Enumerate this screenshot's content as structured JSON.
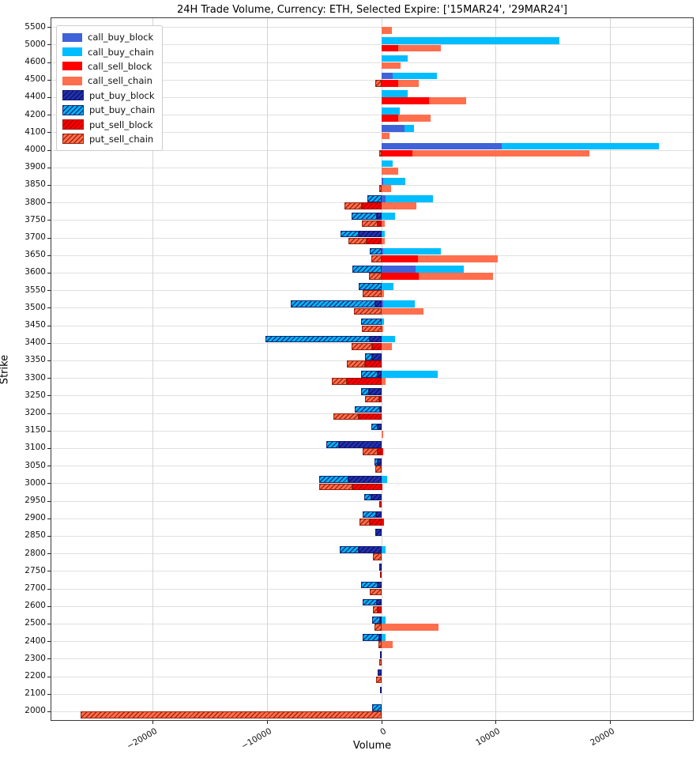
{
  "title": "24H Trade Volume, Currency: ETH, Selected Expire: ['15MAR24', '29MAR24']",
  "chart_data": {
    "type": "bar",
    "orientation": "horizontal",
    "title": "24H Trade Volume, Currency: ETH, Selected Expire: ['15MAR24', '29MAR24']",
    "xlabel": "Volume",
    "ylabel": "Strike",
    "xlim": [
      -28850,
      27250
    ],
    "xticks": [
      -20000,
      -10000,
      0,
      10000,
      20000
    ],
    "xtick_labels": [
      "−20000",
      "−10000",
      "0",
      "10000",
      "20000"
    ],
    "grid": true,
    "legend_position": "upper left",
    "series_names": [
      "call_buy_block",
      "call_buy_chain",
      "call_sell_block",
      "call_sell_chain",
      "put_buy_block",
      "put_buy_chain",
      "put_sell_block",
      "put_sell_chain"
    ],
    "colors": {
      "call_buy_block": "#4062d8",
      "call_buy_chain": "#00bdff",
      "call_sell_block": "#fe0000",
      "call_sell_chain": "#ff6f4e",
      "put_buy_block": "#2330b4",
      "put_buy_chain": "#00b4f8",
      "put_sell_block": "#fa0000",
      "put_sell_chain": "#ff6f4e"
    },
    "hatched_series": [
      "put_buy_block",
      "put_buy_chain",
      "put_sell_block",
      "put_sell_chain"
    ],
    "strikes": [
      5500,
      5000,
      4600,
      4500,
      4400,
      4200,
      4100,
      4000,
      3900,
      3850,
      3800,
      3750,
      3700,
      3650,
      3600,
      3550,
      3500,
      3450,
      3400,
      3350,
      3300,
      3250,
      3200,
      3150,
      3100,
      3050,
      3000,
      2950,
      2900,
      2850,
      2800,
      2750,
      2700,
      2600,
      2500,
      2400,
      2300,
      2200,
      2100,
      2000
    ],
    "rows": [
      {
        "strike": 5500,
        "call_buy_block": 0,
        "call_buy_chain": 0,
        "call_sell_block": 0,
        "call_sell_chain": 900,
        "put_buy_block": 0,
        "put_buy_chain": 0,
        "put_sell_block": 0,
        "put_sell_chain": 0
      },
      {
        "strike": 5000,
        "call_buy_block": 0,
        "call_buy_chain": 15600,
        "call_sell_block": 1500,
        "call_sell_chain": 3700,
        "put_buy_block": 0,
        "put_buy_chain": 0,
        "put_sell_block": 0,
        "put_sell_chain": 0
      },
      {
        "strike": 4600,
        "call_buy_block": 0,
        "call_buy_chain": 2300,
        "call_sell_block": 0,
        "call_sell_chain": 1700,
        "put_buy_block": 0,
        "put_buy_chain": 0,
        "put_sell_block": 0,
        "put_sell_chain": 0
      },
      {
        "strike": 4500,
        "call_buy_block": 1000,
        "call_buy_chain": 3900,
        "call_sell_block": 1500,
        "call_sell_chain": 1800,
        "put_buy_block": 0,
        "put_buy_chain": 0,
        "put_sell_block": 0,
        "put_sell_chain": -500
      },
      {
        "strike": 4400,
        "call_buy_block": 0,
        "call_buy_chain": 2300,
        "call_sell_block": 4200,
        "call_sell_chain": 3200,
        "put_buy_block": 0,
        "put_buy_chain": 0,
        "put_sell_block": 0,
        "put_sell_chain": 0
      },
      {
        "strike": 4200,
        "call_buy_block": 0,
        "call_buy_chain": 1600,
        "call_sell_block": 1500,
        "call_sell_chain": 2800,
        "put_buy_block": 0,
        "put_buy_chain": 0,
        "put_sell_block": 0,
        "put_sell_chain": 0
      },
      {
        "strike": 4100,
        "call_buy_block": 2000,
        "call_buy_chain": 850,
        "call_sell_block": 0,
        "call_sell_chain": 700,
        "put_buy_block": 0,
        "put_buy_chain": 0,
        "put_sell_block": 0,
        "put_sell_chain": 0
      },
      {
        "strike": 4000,
        "call_buy_block": 10500,
        "call_buy_chain": 13800,
        "call_sell_block": 2700,
        "call_sell_chain": 15500,
        "put_buy_block": 0,
        "put_buy_chain": 0,
        "put_sell_block": 0,
        "put_sell_chain": -200
      },
      {
        "strike": 3900,
        "call_buy_block": 0,
        "call_buy_chain": 1000,
        "call_sell_block": 0,
        "call_sell_chain": 1500,
        "put_buy_block": 0,
        "put_buy_chain": 0,
        "put_sell_block": 0,
        "put_sell_chain": 0
      },
      {
        "strike": 3850,
        "call_buy_block": 200,
        "call_buy_chain": 1900,
        "call_sell_block": 0,
        "call_sell_chain": 850,
        "put_buy_block": 0,
        "put_buy_chain": 0,
        "put_sell_block": 0,
        "put_sell_chain": -200
      },
      {
        "strike": 3800,
        "call_buy_block": 400,
        "call_buy_chain": 4100,
        "call_sell_block": 0,
        "call_sell_chain": 3100,
        "put_buy_block": 0,
        "put_buy_chain": -1200,
        "put_sell_block": -1700,
        "put_sell_chain": -1500
      },
      {
        "strike": 3750,
        "call_buy_block": 0,
        "call_buy_chain": 1200,
        "call_sell_block": 0,
        "call_sell_chain": 300,
        "put_buy_block": -400,
        "put_buy_chain": -2200,
        "put_sell_block": -300,
        "put_sell_chain": -1400
      },
      {
        "strike": 3700,
        "call_buy_block": 0,
        "call_buy_chain": 300,
        "call_sell_block": 0,
        "call_sell_chain": 300,
        "put_buy_block": -2000,
        "put_buy_chain": -1550,
        "put_sell_block": -1300,
        "put_sell_chain": -1600
      },
      {
        "strike": 3650,
        "call_buy_block": 200,
        "call_buy_chain": 5000,
        "call_sell_block": 3200,
        "call_sell_chain": 7000,
        "put_buy_block": 0,
        "put_buy_chain": -1000,
        "put_sell_block": 0,
        "put_sell_chain": -900
      },
      {
        "strike": 3600,
        "call_buy_block": 3000,
        "call_buy_chain": 4200,
        "call_sell_block": 3300,
        "call_sell_chain": 6500,
        "put_buy_block": 0,
        "put_buy_chain": -2500,
        "put_sell_block": 0,
        "put_sell_chain": -1100
      },
      {
        "strike": 3550,
        "call_buy_block": 0,
        "call_buy_chain": 1100,
        "call_sell_block": 0,
        "call_sell_chain": 250,
        "put_buy_block": 0,
        "put_buy_chain": -2000,
        "put_sell_block": 0,
        "put_sell_chain": -1600
      },
      {
        "strike": 3500,
        "call_buy_block": 200,
        "call_buy_chain": 2700,
        "call_sell_block": 0,
        "call_sell_chain": 3700,
        "put_buy_block": -500,
        "put_buy_chain": -7400,
        "put_sell_block": 0,
        "put_sell_chain": -2400
      },
      {
        "strike": 3450,
        "call_buy_block": 0,
        "call_buy_chain": 250,
        "call_sell_block": 0,
        "call_sell_chain": 150,
        "put_buy_block": 0,
        "put_buy_chain": -1800,
        "put_sell_block": 0,
        "put_sell_chain": -1700
      },
      {
        "strike": 3400,
        "call_buy_block": 0,
        "call_buy_chain": 1200,
        "call_sell_block": 0,
        "call_sell_chain": 900,
        "put_buy_block": -1000,
        "put_buy_chain": -9100,
        "put_sell_block": -800,
        "put_sell_chain": -1800
      },
      {
        "strike": 3350,
        "call_buy_block": 0,
        "call_buy_chain": 0,
        "call_sell_block": 0,
        "call_sell_chain": 0,
        "put_buy_block": -800,
        "put_buy_chain": -600,
        "put_sell_block": -1400,
        "put_sell_chain": -1600
      },
      {
        "strike": 3300,
        "call_buy_block": 0,
        "call_buy_chain": 4900,
        "call_sell_block": 0,
        "call_sell_chain": 370,
        "put_buy_block": -300,
        "put_buy_chain": -1500,
        "put_sell_block": -3000,
        "put_sell_chain": -1300
      },
      {
        "strike": 3250,
        "call_buy_block": 0,
        "call_buy_chain": 0,
        "call_sell_block": 0,
        "call_sell_chain": 0,
        "put_buy_block": -1100,
        "put_buy_chain": -700,
        "put_sell_block": -200,
        "put_sell_chain": -1200
      },
      {
        "strike": 3200,
        "call_buy_block": 0,
        "call_buy_chain": 0,
        "call_sell_block": 0,
        "call_sell_chain": 0,
        "put_buy_block": -100,
        "put_buy_chain": -2200,
        "put_sell_block": -2000,
        "put_sell_chain": -2200
      },
      {
        "strike": 3150,
        "call_buy_block": 0,
        "call_buy_chain": 0,
        "call_sell_block": 0,
        "call_sell_chain": 150,
        "put_buy_block": -300,
        "put_buy_chain": -600,
        "put_sell_block": 0,
        "put_sell_chain": 0
      },
      {
        "strike": 3100,
        "call_buy_block": 0,
        "call_buy_chain": 0,
        "call_sell_block": 150,
        "call_sell_chain": 0,
        "put_buy_block": -3700,
        "put_buy_chain": -1100,
        "put_sell_block": -300,
        "put_sell_chain": -1300
      },
      {
        "strike": 3050,
        "call_buy_block": 0,
        "call_buy_chain": 0,
        "call_sell_block": 0,
        "call_sell_chain": 0,
        "put_buy_block": -300,
        "put_buy_chain": -300,
        "put_sell_block": 0,
        "put_sell_chain": -500
      },
      {
        "strike": 3000,
        "call_buy_block": 0,
        "call_buy_chain": 500,
        "call_sell_block": 100,
        "call_sell_chain": 0,
        "put_buy_block": -2900,
        "put_buy_chain": -2500,
        "put_sell_block": -2500,
        "put_sell_chain": -2900
      },
      {
        "strike": 2950,
        "call_buy_block": 0,
        "call_buy_chain": 0,
        "call_sell_block": 0,
        "call_sell_chain": 0,
        "put_buy_block": -900,
        "put_buy_chain": -600,
        "put_sell_block": -150,
        "put_sell_chain": 0
      },
      {
        "strike": 2900,
        "call_buy_block": 0,
        "call_buy_chain": 0,
        "call_sell_block": 250,
        "call_sell_chain": 0,
        "put_buy_block": -450,
        "put_buy_chain": -1200,
        "put_sell_block": -1000,
        "put_sell_chain": -900
      },
      {
        "strike": 2850,
        "call_buy_block": 0,
        "call_buy_chain": 0,
        "call_sell_block": 0,
        "call_sell_chain": 0,
        "put_buy_block": -500,
        "put_buy_chain": 0,
        "put_sell_block": 0,
        "put_sell_chain": 0
      },
      {
        "strike": 2800,
        "call_buy_block": 0,
        "call_buy_chain": 400,
        "call_sell_block": 0,
        "call_sell_chain": 0,
        "put_buy_block": -2000,
        "put_buy_chain": -1600,
        "put_sell_block": 0,
        "put_sell_chain": -700
      },
      {
        "strike": 2750,
        "call_buy_block": 0,
        "call_buy_chain": 0,
        "call_sell_block": 0,
        "call_sell_chain": 0,
        "put_buy_block": -150,
        "put_buy_chain": 0,
        "put_sell_block": -100,
        "put_sell_chain": 0
      },
      {
        "strike": 2700,
        "call_buy_block": 0,
        "call_buy_chain": 0,
        "call_sell_block": 0,
        "call_sell_chain": 0,
        "put_buy_block": -300,
        "put_buy_chain": -1500,
        "put_sell_block": 0,
        "put_sell_chain": -1000
      },
      {
        "strike": 2600,
        "call_buy_block": 0,
        "call_buy_chain": 0,
        "call_sell_block": 0,
        "call_sell_chain": 0,
        "put_buy_block": -400,
        "put_buy_chain": -1200,
        "put_sell_block": -300,
        "put_sell_chain": -400
      },
      {
        "strike": 2500,
        "call_buy_block": 0,
        "call_buy_chain": 400,
        "call_sell_block": 0,
        "call_sell_chain": 5000,
        "put_buy_block": -100,
        "put_buy_chain": -700,
        "put_sell_block": 0,
        "put_sell_chain": -600
      },
      {
        "strike": 2400,
        "call_buy_block": 0,
        "call_buy_chain": 350,
        "call_sell_block": 0,
        "call_sell_chain": 1000,
        "put_buy_block": -150,
        "put_buy_chain": -1500,
        "put_sell_block": 0,
        "put_sell_chain": -250
      },
      {
        "strike": 2300,
        "call_buy_block": 0,
        "call_buy_chain": 0,
        "call_sell_block": 0,
        "call_sell_chain": 0,
        "put_buy_block": -100,
        "put_buy_chain": 0,
        "put_sell_block": 0,
        "put_sell_chain": -150
      },
      {
        "strike": 2200,
        "call_buy_block": 0,
        "call_buy_chain": 0,
        "call_sell_block": 0,
        "call_sell_chain": 0,
        "put_buy_block": -300,
        "put_buy_chain": 0,
        "put_sell_block": 0,
        "put_sell_chain": -450
      },
      {
        "strike": 2100,
        "call_buy_block": 0,
        "call_buy_chain": 0,
        "call_sell_block": 0,
        "call_sell_chain": 0,
        "put_buy_block": -100,
        "put_buy_chain": 0,
        "put_sell_block": 0,
        "put_sell_chain": 0
      },
      {
        "strike": 2000,
        "call_buy_block": 0,
        "call_buy_chain": 0,
        "call_sell_block": 0,
        "call_sell_chain": 0,
        "put_buy_block": 0,
        "put_buy_chain": -800,
        "put_sell_block": 0,
        "put_sell_chain": -26300
      }
    ]
  }
}
